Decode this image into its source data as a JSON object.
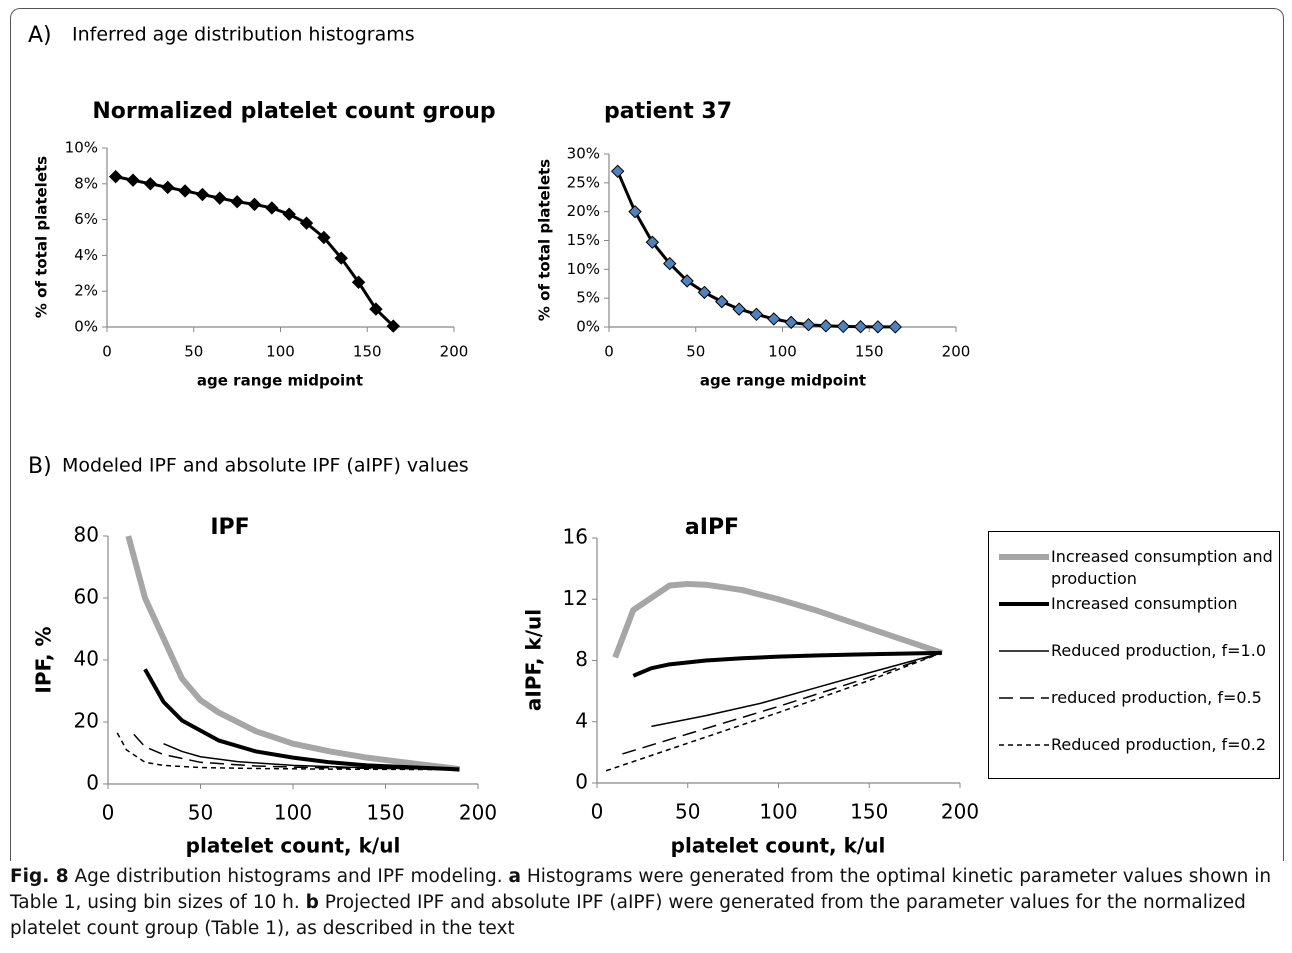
{
  "sections": [
    {
      "label": "A)",
      "text": "Inferred age distribution histograms"
    },
    {
      "label": "B)",
      "text": "Modeled IPF and absolute IPF (aIPF) values"
    }
  ],
  "caption": [
    {
      "text": "Fig. 8",
      "bold": true
    },
    {
      "text": " Age distribution histograms and IPF modeling. ",
      "bold": false
    },
    {
      "text": "a",
      "bold": true
    },
    {
      "text": " Histograms were generated from the optimal kinetic parameter values shown in Table 1, using bin sizes of 10 h. ",
      "bold": false
    },
    {
      "text": "b",
      "bold": true
    },
    {
      "text": " Projected IPF and absolute IPF (aIPF) were generated from the parameter values for the normalized platelet count group (Table 1), as described in the text",
      "bold": false
    }
  ],
  "chart_data": [
    {
      "type": "line",
      "title": "Normalized platelet count group",
      "x_label": "age range midpoint",
      "y_label": "% of total platelets",
      "series": [
        {
          "color": "#000000",
          "marker": "diamond",
          "marker_color": "#000000",
          "width": 3,
          "x": [
            5,
            15,
            25,
            35,
            45,
            55,
            65,
            75,
            85,
            95,
            105,
            115,
            125,
            135,
            145,
            155,
            165
          ],
          "values": [
            8.4,
            8.2,
            8.0,
            7.8,
            7.6,
            7.4,
            7.2,
            7.0,
            6.85,
            6.65,
            6.3,
            5.8,
            5.0,
            3.85,
            2.5,
            1.0,
            0.05
          ]
        }
      ],
      "xlim": [
        0,
        200
      ],
      "xticks": [
        0,
        50,
        100,
        150,
        200
      ],
      "ylim": [
        0,
        10
      ],
      "yticks": [
        {
          "value": 0,
          "label": "0%"
        },
        {
          "value": 2,
          "label": "2%"
        },
        {
          "value": 4,
          "label": "4%"
        },
        {
          "value": 6,
          "label": "6%"
        },
        {
          "value": 8,
          "label": "8%"
        },
        {
          "value": 10,
          "label": "10%"
        }
      ]
    },
    {
      "type": "line",
      "title": "patient 37",
      "x_label": "age range midpoint",
      "y_label": "% of total platelets",
      "series": [
        {
          "color": "#000000",
          "marker": "diamond",
          "marker_color": "#4f81bd",
          "width": 3,
          "x": [
            5,
            15,
            25,
            35,
            45,
            55,
            65,
            75,
            85,
            95,
            105,
            115,
            125,
            135,
            145,
            155,
            165
          ],
          "values": [
            27,
            20,
            14.7,
            11,
            8,
            6,
            4.4,
            3.1,
            2.2,
            1.4,
            0.8,
            0.4,
            0.2,
            0.1,
            0.05,
            0.03,
            0.01
          ]
        }
      ],
      "xlim": [
        0,
        200
      ],
      "xticks": [
        0,
        50,
        100,
        150,
        200
      ],
      "ylim": [
        0,
        30
      ],
      "yticks": [
        {
          "value": 0,
          "label": "0%"
        },
        {
          "value": 5,
          "label": "5%"
        },
        {
          "value": 10,
          "label": "10%"
        },
        {
          "value": 15,
          "label": "15%"
        },
        {
          "value": 20,
          "label": "20%"
        },
        {
          "value": 25,
          "label": "25%"
        },
        {
          "value": 30,
          "label": "30%"
        }
      ]
    },
    {
      "type": "line",
      "title": "IPF",
      "x_label": "platelet count, k/ul",
      "y_label": "IPF, %",
      "series": [
        {
          "color": "#a6a6a6",
          "width": 6,
          "dash": "solid",
          "x": [
            11,
            20,
            40,
            50,
            60,
            80,
            100,
            120,
            140,
            160,
            190
          ],
          "values": [
            80,
            60,
            34,
            27,
            23,
            17,
            13,
            10.5,
            8.5,
            7,
            4.8
          ]
        },
        {
          "color": "#000000",
          "width": 4,
          "dash": "solid",
          "x": [
            20,
            30,
            40,
            60,
            80,
            100,
            120,
            140,
            160,
            190
          ],
          "values": [
            37,
            26.5,
            20.5,
            14,
            10.5,
            8.5,
            7,
            6,
            5.5,
            4.7
          ]
        },
        {
          "color": "#000000",
          "width": 1.5,
          "dash": "solid",
          "x": [
            30,
            40,
            50,
            70,
            100,
            130,
            160,
            190
          ],
          "values": [
            13,
            10.5,
            8.8,
            7.2,
            6,
            5.4,
            5,
            4.7
          ]
        },
        {
          "color": "#000000",
          "width": 1.5,
          "dash": "long",
          "x": [
            14,
            20,
            30,
            50,
            80,
            110,
            150,
            190
          ],
          "values": [
            16,
            12,
            9.5,
            7,
            5.8,
            5.3,
            5,
            4.7
          ]
        },
        {
          "color": "#000000",
          "width": 1.5,
          "dash": "short",
          "x": [
            5,
            10,
            20,
            30,
            50,
            80,
            120,
            160,
            190
          ],
          "values": [
            16.5,
            11,
            7,
            6,
            5.3,
            5,
            4.8,
            4.7,
            4.6
          ]
        }
      ],
      "xlim": [
        0,
        200
      ],
      "xticks": [
        0,
        50,
        100,
        150,
        200
      ],
      "ylim": [
        0,
        80
      ],
      "yticks": [
        0,
        20,
        40,
        60,
        80
      ]
    },
    {
      "type": "line",
      "title": "aIPF",
      "x_label": "platelet count, k/ul",
      "y_label": "aIPF, k/ul",
      "legend": "right",
      "series": [
        {
          "name": "Increased consumption and production",
          "color": "#a6a6a6",
          "width": 6,
          "dash": "solid",
          "x": [
            10,
            20,
            40,
            50,
            60,
            80,
            100,
            120,
            140,
            160,
            190
          ],
          "values": [
            8.2,
            11.3,
            12.9,
            13,
            12.95,
            12.6,
            12,
            11.3,
            10.5,
            9.7,
            8.5
          ]
        },
        {
          "name": "Increased consumption",
          "color": "#000000",
          "width": 4,
          "dash": "solid",
          "x": [
            20,
            30,
            40,
            60,
            80,
            100,
            120,
            140,
            160,
            190
          ],
          "values": [
            7,
            7.5,
            7.75,
            8,
            8.15,
            8.25,
            8.33,
            8.38,
            8.43,
            8.5
          ]
        },
        {
          "name": "Reduced production, f=1.0",
          "color": "#000000",
          "width": 1.5,
          "dash": "solid",
          "x": [
            30,
            60,
            90,
            120,
            150,
            190
          ],
          "values": [
            3.7,
            4.4,
            5.2,
            6.2,
            7.2,
            8.5
          ]
        },
        {
          "name": "reduced production, f=0.5",
          "color": "#000000",
          "width": 1.5,
          "dash": "long",
          "x": [
            14,
            50,
            100,
            150,
            190
          ],
          "values": [
            1.9,
            3.2,
            5,
            6.9,
            8.5
          ]
        },
        {
          "name": "Reduced production, f=0.2",
          "color": "#000000",
          "width": 1.5,
          "dash": "short",
          "x": [
            5,
            50,
            100,
            150,
            190
          ],
          "values": [
            0.8,
            2.6,
            4.6,
            6.7,
            8.5
          ]
        }
      ],
      "xlim": [
        0,
        200
      ],
      "xticks": [
        0,
        50,
        100,
        150,
        200
      ],
      "ylim": [
        0,
        16
      ],
      "yticks": [
        0,
        4,
        8,
        12,
        16
      ]
    }
  ]
}
